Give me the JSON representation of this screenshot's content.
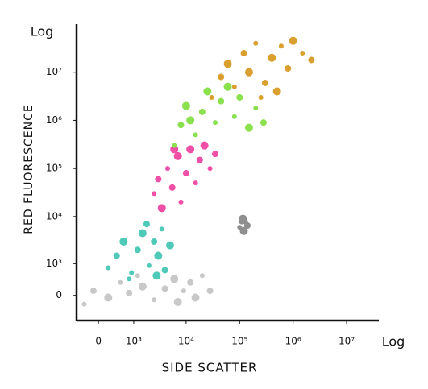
{
  "chart_data": {
    "type": "scatter",
    "x_label": "SIDE SCATTER",
    "y_label": "RED FLUORESCENCE",
    "x_scale_label": "Log",
    "y_scale_label": "Log",
    "xlim": [
      -500,
      40000000
    ],
    "ylim": [
      -700,
      100000000
    ],
    "xticks": [
      0,
      {
        "value": 1000,
        "label": "10³"
      },
      {
        "value": 10000,
        "label": "10⁴"
      },
      {
        "value": 100000,
        "label": "10⁵"
      },
      {
        "value": 1000000,
        "label": "10⁶"
      },
      {
        "value": 10000000,
        "label": "10⁷"
      }
    ],
    "yticks": [
      0,
      {
        "value": 1000,
        "label": "10³"
      },
      {
        "value": 10000,
        "label": "10⁴"
      },
      {
        "value": 100000,
        "label": "10⁵"
      },
      {
        "value": 1000000,
        "label": "10⁶"
      },
      {
        "value": 10000000,
        "label": "10⁷"
      }
    ],
    "series": [
      {
        "color": "#c8c8c8",
        "x": [
          -300,
          -100,
          200,
          500,
          800,
          1500,
          2500,
          4000,
          6000,
          9000,
          12000,
          15000,
          20000,
          28000,
          7000,
          1200
        ],
        "y": [
          -200,
          100,
          -50,
          300,
          50,
          200,
          -100,
          150,
          400,
          100,
          300,
          -50,
          500,
          100,
          -150,
          500
        ]
      },
      {
        "color": "#4fc9b8",
        "x": [
          200,
          400,
          600,
          900,
          1200,
          1500,
          2000,
          2500,
          3000,
          3500,
          4000,
          5000,
          800,
          1800,
          2800
        ],
        "y": [
          800,
          1500,
          3000,
          600,
          2000,
          4500,
          900,
          3000,
          1500,
          5500,
          700,
          2500,
          400,
          7000,
          500
        ]
      },
      {
        "color": "#ef4fa6",
        "x": [
          2500,
          3000,
          3500,
          4500,
          5500,
          7000,
          8000,
          10000,
          12000,
          15000,
          18000,
          22000,
          28000,
          35000,
          6000
        ],
        "y": [
          30000,
          60000,
          15000,
          100000,
          40000,
          180000,
          20000,
          80000,
          250000,
          50000,
          150000,
          300000,
          100000,
          200000,
          250000
        ]
      },
      {
        "color": "#8be04e",
        "x": [
          6000,
          8000,
          10000,
          15000,
          20000,
          25000,
          35000,
          45000,
          60000,
          80000,
          100000,
          150000,
          200000,
          280000,
          12000
        ],
        "y": [
          300000,
          800000,
          2000000,
          500000,
          1500000,
          4000000,
          900000,
          2500000,
          5000000,
          1200000,
          3000000,
          700000,
          1800000,
          900000,
          1000000
        ]
      },
      {
        "color": "#d9a030",
        "x": [
          30000,
          45000,
          60000,
          80000,
          120000,
          150000,
          200000,
          300000,
          400000,
          600000,
          800000,
          1000000,
          1500000,
          2200000,
          500000,
          250000
        ],
        "y": [
          3000000,
          8000000,
          15000000,
          5000000,
          25000000,
          10000000,
          40000000,
          6000000,
          20000000,
          35000000,
          12000000,
          45000000,
          25000000,
          18000000,
          4000000,
          3000000
        ]
      },
      {
        "color": "#8f8f8f",
        "x": [
          100000,
          110000,
          120000,
          130000,
          140000,
          115000,
          125000
        ],
        "y": [
          6000,
          8000,
          5000,
          7500,
          6500,
          9000,
          5500
        ]
      }
    ]
  }
}
